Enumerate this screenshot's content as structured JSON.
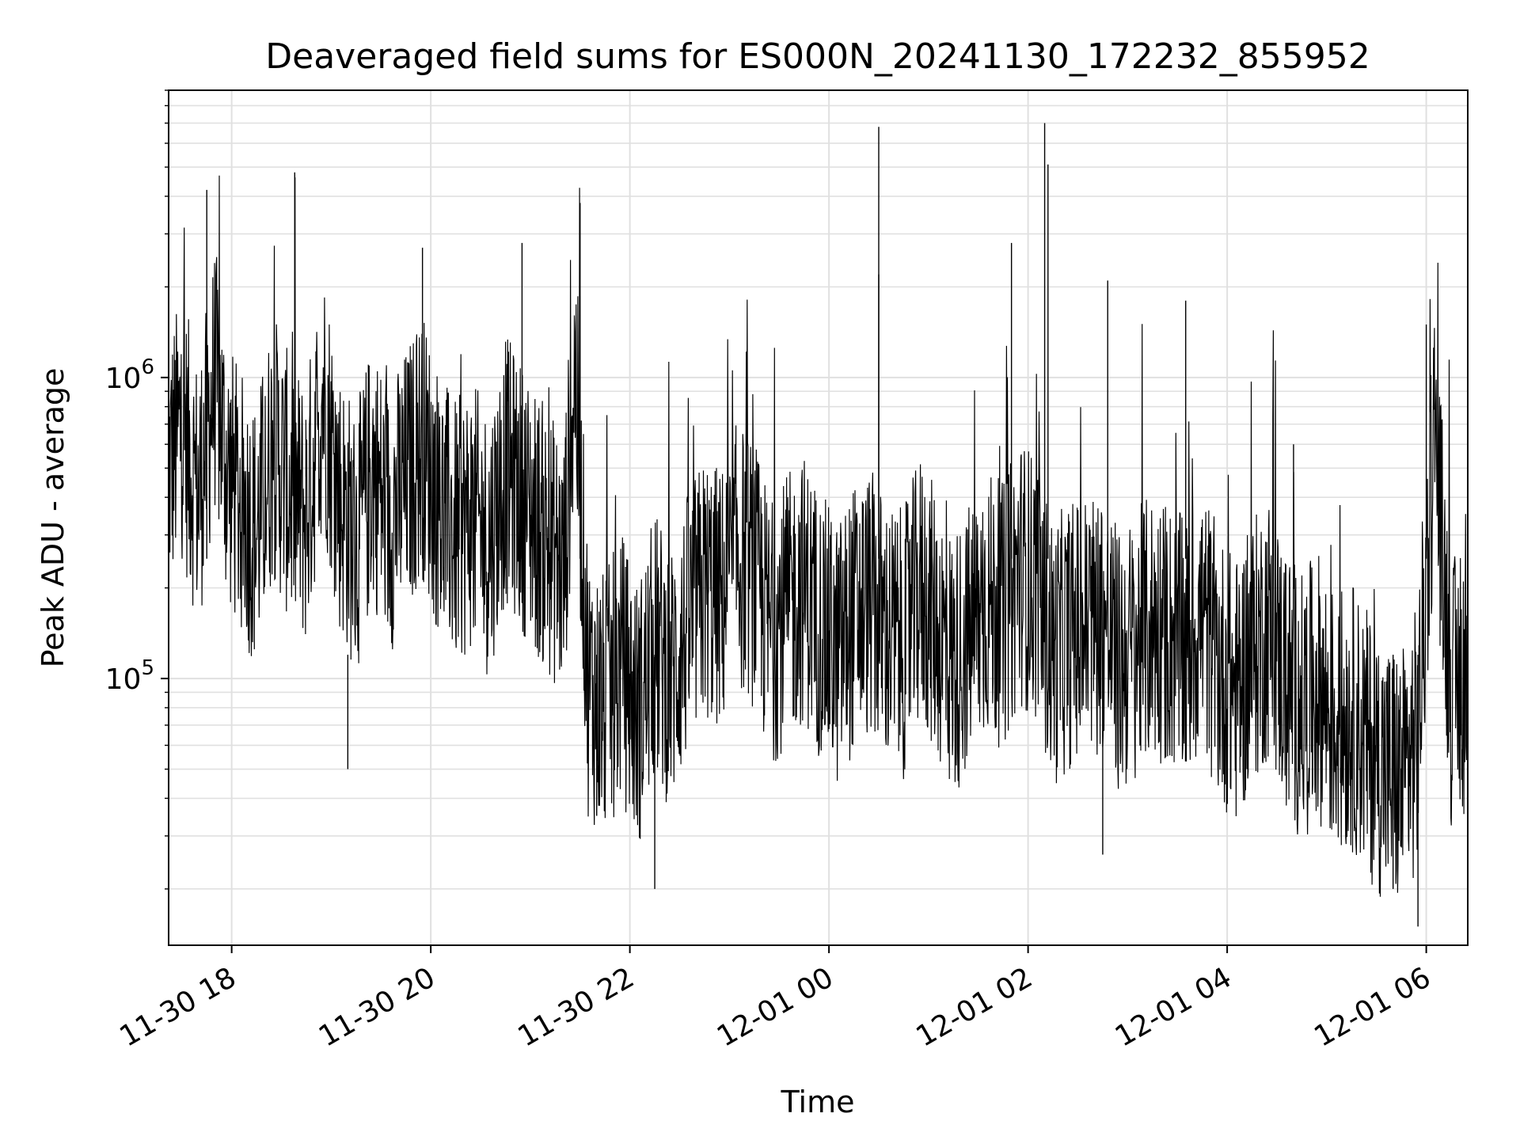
{
  "chart_data": {
    "type": "line",
    "title": "Deaveraged field sums for ES000N_20241130_172232_855952",
    "xlabel": "Time",
    "ylabel": "Peak ADU - average",
    "yscale": "log",
    "ylim": [
      13000,
      9000000
    ],
    "xlim": [
      "2024-11-30T17:22",
      "2024-12-01T06:25"
    ],
    "grid": true,
    "line_color": "#000000",
    "grid_color": "#e0e0e0",
    "x_ticks": [
      {
        "value": "2024-11-30T18:00",
        "label": "11-30 18"
      },
      {
        "value": "2024-11-30T20:00",
        "label": "11-30 20"
      },
      {
        "value": "2024-11-30T22:00",
        "label": "11-30 22"
      },
      {
        "value": "2024-12-01T00:00",
        "label": "12-01 00"
      },
      {
        "value": "2024-12-01T02:00",
        "label": "12-01 02"
      },
      {
        "value": "2024-12-01T04:00",
        "label": "12-01 04"
      },
      {
        "value": "2024-12-01T06:00",
        "label": "12-01 06"
      }
    ],
    "y_ticks": [
      {
        "value": 100000,
        "base": "10",
        "exp": "5"
      },
      {
        "value": 1000000,
        "base": "10",
        "exp": "6"
      }
    ],
    "series": [
      {
        "x": [
          "2024-11-30T17:22",
          "2024-11-30T17:30",
          "2024-11-30T17:40",
          "2024-11-30T17:50",
          "2024-11-30T17:57",
          "2024-11-30T18:05",
          "2024-11-30T18:15",
          "2024-11-30T18:25",
          "2024-11-30T18:35",
          "2024-11-30T18:45",
          "2024-11-30T18:55",
          "2024-11-30T19:05",
          "2024-11-30T19:15",
          "2024-11-30T19:25",
          "2024-11-30T19:35",
          "2024-11-30T19:45",
          "2024-11-30T19:55",
          "2024-11-30T20:05",
          "2024-11-30T20:15",
          "2024-11-30T20:25",
          "2024-11-30T20:35",
          "2024-11-30T20:45",
          "2024-11-30T20:55",
          "2024-11-30T21:05",
          "2024-11-30T21:15",
          "2024-11-30T21:20",
          "2024-11-30T21:27",
          "2024-11-30T21:35",
          "2024-11-30T21:45",
          "2024-11-30T21:55",
          "2024-11-30T22:05",
          "2024-11-30T22:15",
          "2024-11-30T22:25",
          "2024-11-30T22:35",
          "2024-11-30T22:45",
          "2024-11-30T22:55",
          "2024-11-30T23:05",
          "2024-11-30T23:15",
          "2024-11-30T23:25",
          "2024-11-30T23:35",
          "2024-11-30T23:45",
          "2024-11-30T23:55",
          "2024-12-01T00:05",
          "2024-12-01T00:15",
          "2024-12-01T00:25",
          "2024-12-01T00:35",
          "2024-12-01T00:45",
          "2024-12-01T00:55",
          "2024-12-01T01:05",
          "2024-12-01T01:15",
          "2024-12-01T01:25",
          "2024-12-01T01:35",
          "2024-12-01T01:45",
          "2024-12-01T01:55",
          "2024-12-01T02:05",
          "2024-12-01T02:15",
          "2024-12-01T02:25",
          "2024-12-01T02:35",
          "2024-12-01T02:45",
          "2024-12-01T02:55",
          "2024-12-01T03:05",
          "2024-12-01T03:15",
          "2024-12-01T03:25",
          "2024-12-01T03:35",
          "2024-12-01T03:45",
          "2024-12-01T03:55",
          "2024-12-01T04:05",
          "2024-12-01T04:15",
          "2024-12-01T04:25",
          "2024-12-01T04:35",
          "2024-12-01T04:45",
          "2024-12-01T04:55",
          "2024-12-01T05:05",
          "2024-12-01T05:15",
          "2024-12-01T05:25",
          "2024-12-01T05:35",
          "2024-12-01T05:45",
          "2024-12-01T05:55",
          "2024-12-01T06:05",
          "2024-12-01T06:15",
          "2024-12-01T06:25"
        ],
        "y": [
          500000,
          700000,
          400000,
          1000000,
          500000,
          380000,
          300000,
          600000,
          420000,
          350000,
          900000,
          400000,
          280000,
          500000,
          330000,
          450000,
          600000,
          380000,
          300000,
          350000,
          280000,
          500000,
          400000,
          320000,
          260000,
          220000,
          1100000,
          95000,
          80000,
          110000,
          75000,
          130000,
          100000,
          150000,
          200000,
          180000,
          260000,
          220000,
          140000,
          170000,
          200000,
          150000,
          120000,
          160000,
          180000,
          140000,
          130000,
          200000,
          150000,
          110000,
          140000,
          180000,
          160000,
          230000,
          200000,
          120000,
          140000,
          150000,
          160000,
          110000,
          130000,
          150000,
          140000,
          120000,
          160000,
          110000,
          90000,
          120000,
          150000,
          100000,
          80000,
          95000,
          70000,
          75000,
          60000,
          50000,
          45000,
          65000,
          700000,
          90000,
          100000
        ]
      }
    ],
    "spikes": [
      {
        "x": "2024-11-30T17:45",
        "y": 4200000
      },
      {
        "x": "2024-11-30T18:38",
        "y": 4800000
      },
      {
        "x": "2024-11-30T19:55",
        "y": 2700000
      },
      {
        "x": "2024-11-30T20:55",
        "y": 2800000
      },
      {
        "x": "2024-11-30T21:30",
        "y": 3800000
      },
      {
        "x": "2024-12-01T00:30",
        "y": 6800000
      },
      {
        "x": "2024-12-01T00:30",
        "y": 2200000
      },
      {
        "x": "2024-12-01T01:50",
        "y": 2800000
      },
      {
        "x": "2024-12-01T02:10",
        "y": 7000000
      },
      {
        "x": "2024-12-01T02:12",
        "y": 5100000
      },
      {
        "x": "2024-12-01T02:48",
        "y": 2100000
      },
      {
        "x": "2024-12-01T03:35",
        "y": 1800000
      },
      {
        "x": "2024-12-01T04:40",
        "y": 600000
      },
      {
        "x": "2024-12-01T06:00",
        "y": 1500000
      }
    ],
    "dips": [
      {
        "x": "2024-11-30T19:10",
        "y": 50000
      },
      {
        "x": "2024-11-30T21:40",
        "y": 35000
      },
      {
        "x": "2024-11-30T22:15",
        "y": 20000
      },
      {
        "x": "2024-12-01T02:45",
        "y": 26000
      },
      {
        "x": "2024-12-01T05:55",
        "y": 15000
      },
      {
        "x": "2024-12-01T05:40",
        "y": 20000
      }
    ]
  }
}
